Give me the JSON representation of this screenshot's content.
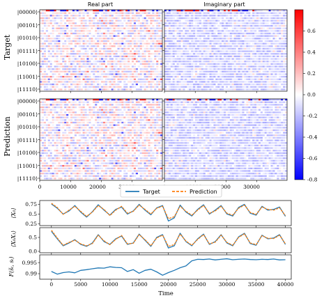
{
  "heatmaps": {
    "col_titles": [
      "Real part",
      "Imaginary part"
    ],
    "row_labels": [
      "Target",
      "Prediction"
    ],
    "state_labels": [
      "|00000⟩",
      "|00101⟩",
      "|01010⟩",
      "|01111⟩",
      "|10100⟩",
      "|11001⟩",
      "|11110⟩"
    ],
    "x_ticks": [
      0,
      10000,
      20000,
      30000
    ],
    "x_range": [
      0,
      39800
    ],
    "colorbar": {
      "vmin": -0.8,
      "vmax": 0.8,
      "ticks": [
        -0.8,
        -0.6,
        -0.4,
        -0.2,
        0.0,
        0.2,
        0.4,
        0.6
      ],
      "colormap": "bwr"
    }
  },
  "legend": {
    "entries": [
      "Target",
      "Prediction"
    ]
  },
  "colors": {
    "target": "#1f77b4",
    "prediction": "#ff7f0e"
  },
  "chart_data": [
    {
      "type": "line",
      "ylabel": "⟨X₀⟩",
      "ylim": [
        0.2,
        0.85
      ],
      "yticks": [
        0.25,
        0.5,
        0.75
      ],
      "xlim": [
        -2000,
        41000
      ],
      "series": [
        {
          "name": "Target",
          "x": [
            0,
            1000,
            2000,
            3000,
            4000,
            5000,
            6000,
            7000,
            8000,
            9000,
            10000,
            11000,
            12000,
            13000,
            14000,
            15000,
            16000,
            17000,
            18000,
            19000,
            20000,
            21000,
            22000,
            23000,
            24000,
            25000,
            26000,
            27000,
            28000,
            29000,
            30000,
            31000,
            32000,
            33000,
            34000,
            35000,
            36000,
            37000,
            38000,
            39000,
            40000
          ],
          "y": [
            0.76,
            0.65,
            0.5,
            0.58,
            0.72,
            0.55,
            0.42,
            0.56,
            0.74,
            0.6,
            0.47,
            0.62,
            0.68,
            0.5,
            0.58,
            0.75,
            0.6,
            0.48,
            0.66,
            0.72,
            0.32,
            0.4,
            0.73,
            0.55,
            0.45,
            0.62,
            0.74,
            0.5,
            0.6,
            0.72,
            0.5,
            0.45,
            0.67,
            0.75,
            0.52,
            0.47,
            0.7,
            0.6,
            0.62,
            0.68,
            0.44
          ]
        },
        {
          "name": "Prediction",
          "x": [
            0,
            1000,
            2000,
            3000,
            4000,
            5000,
            6000,
            7000,
            8000,
            9000,
            10000,
            11000,
            12000,
            13000,
            14000,
            15000,
            16000,
            17000,
            18000,
            19000,
            20000,
            21000,
            22000,
            23000,
            24000,
            25000,
            26000,
            27000,
            28000,
            29000,
            30000,
            31000,
            32000,
            33000,
            34000,
            35000,
            36000,
            37000,
            38000,
            39000,
            40000
          ],
          "y": [
            0.78,
            0.67,
            0.49,
            0.6,
            0.7,
            0.57,
            0.44,
            0.55,
            0.72,
            0.62,
            0.46,
            0.6,
            0.7,
            0.52,
            0.57,
            0.73,
            0.62,
            0.5,
            0.65,
            0.7,
            0.38,
            0.43,
            0.7,
            0.57,
            0.47,
            0.6,
            0.72,
            0.52,
            0.58,
            0.7,
            0.52,
            0.47,
            0.65,
            0.73,
            0.54,
            0.49,
            0.68,
            0.62,
            0.6,
            0.66,
            0.46
          ]
        }
      ]
    },
    {
      "type": "line",
      "ylabel": "⟨X₀X₁⟩",
      "ylim": [
        -0.05,
        0.85
      ],
      "yticks": [
        0.0,
        0.5
      ],
      "xlim": [
        -2000,
        41000
      ],
      "series": [
        {
          "name": "Target",
          "x": [
            0,
            1000,
            2000,
            3000,
            4000,
            5000,
            6000,
            7000,
            8000,
            9000,
            10000,
            11000,
            12000,
            13000,
            14000,
            15000,
            16000,
            17000,
            18000,
            19000,
            20000,
            21000,
            22000,
            23000,
            24000,
            25000,
            26000,
            27000,
            28000,
            29000,
            30000,
            31000,
            32000,
            33000,
            34000,
            35000,
            36000,
            37000,
            38000,
            39000,
            40000
          ],
          "y": [
            0.72,
            0.45,
            0.2,
            0.3,
            0.42,
            0.25,
            0.18,
            0.3,
            0.6,
            0.35,
            0.25,
            0.45,
            0.55,
            0.25,
            0.3,
            0.62,
            0.4,
            0.18,
            0.5,
            0.6,
            0.12,
            0.2,
            0.65,
            0.35,
            0.2,
            0.45,
            0.62,
            0.25,
            0.35,
            0.6,
            0.3,
            0.2,
            0.52,
            0.65,
            0.28,
            0.22,
            0.58,
            0.45,
            0.48,
            0.6,
            0.25
          ]
        },
        {
          "name": "Prediction",
          "x": [
            0,
            1000,
            2000,
            3000,
            4000,
            5000,
            6000,
            7000,
            8000,
            9000,
            10000,
            11000,
            12000,
            13000,
            14000,
            15000,
            16000,
            17000,
            18000,
            19000,
            20000,
            21000,
            22000,
            23000,
            24000,
            25000,
            26000,
            27000,
            28000,
            29000,
            30000,
            31000,
            32000,
            33000,
            34000,
            35000,
            36000,
            37000,
            38000,
            39000,
            40000
          ],
          "y": [
            0.76,
            0.48,
            0.22,
            0.32,
            0.4,
            0.27,
            0.2,
            0.28,
            0.58,
            0.38,
            0.24,
            0.43,
            0.57,
            0.27,
            0.29,
            0.6,
            0.42,
            0.2,
            0.48,
            0.58,
            0.18,
            0.24,
            0.62,
            0.37,
            0.22,
            0.43,
            0.6,
            0.27,
            0.33,
            0.58,
            0.32,
            0.22,
            0.5,
            0.63,
            0.3,
            0.24,
            0.56,
            0.47,
            0.46,
            0.58,
            0.27
          ]
        }
      ]
    },
    {
      "type": "line",
      "ylabel": "F(s̃ₜ, sₜ)",
      "xlabel": "Time",
      "ylim": [
        0.9875,
        0.9985
      ],
      "yticks": [
        0.99,
        0.995
      ],
      "xticks": [
        0,
        5000,
        10000,
        15000,
        20000,
        25000,
        30000,
        35000,
        40000
      ],
      "xlim": [
        -2000,
        41000
      ],
      "series": [
        {
          "name": "Target",
          "x": [
            0,
            1000,
            2000,
            3000,
            4000,
            5000,
            6000,
            7000,
            8000,
            9000,
            10000,
            11000,
            12000,
            13000,
            14000,
            15000,
            16000,
            17000,
            18000,
            19000,
            20000,
            21000,
            22000,
            23000,
            24000,
            25000,
            26000,
            27000,
            28000,
            29000,
            30000,
            31000,
            32000,
            33000,
            34000,
            35000,
            36000,
            37000,
            38000,
            39000,
            40000
          ],
          "y": [
            0.991,
            0.9898,
            0.9905,
            0.9908,
            0.9904,
            0.9915,
            0.9918,
            0.9922,
            0.9926,
            0.9925,
            0.9931,
            0.9928,
            0.9927,
            0.991,
            0.9918,
            0.9902,
            0.9915,
            0.992,
            0.9908,
            0.9893,
            0.9905,
            0.9915,
            0.9927,
            0.9935,
            0.9958,
            0.9965,
            0.9964,
            0.9966,
            0.9962,
            0.9965,
            0.9967,
            0.9963,
            0.9965,
            0.9966,
            0.9964,
            0.9963,
            0.9965,
            0.9964,
            0.9966,
            0.9962,
            0.9963
          ]
        }
      ]
    }
  ]
}
